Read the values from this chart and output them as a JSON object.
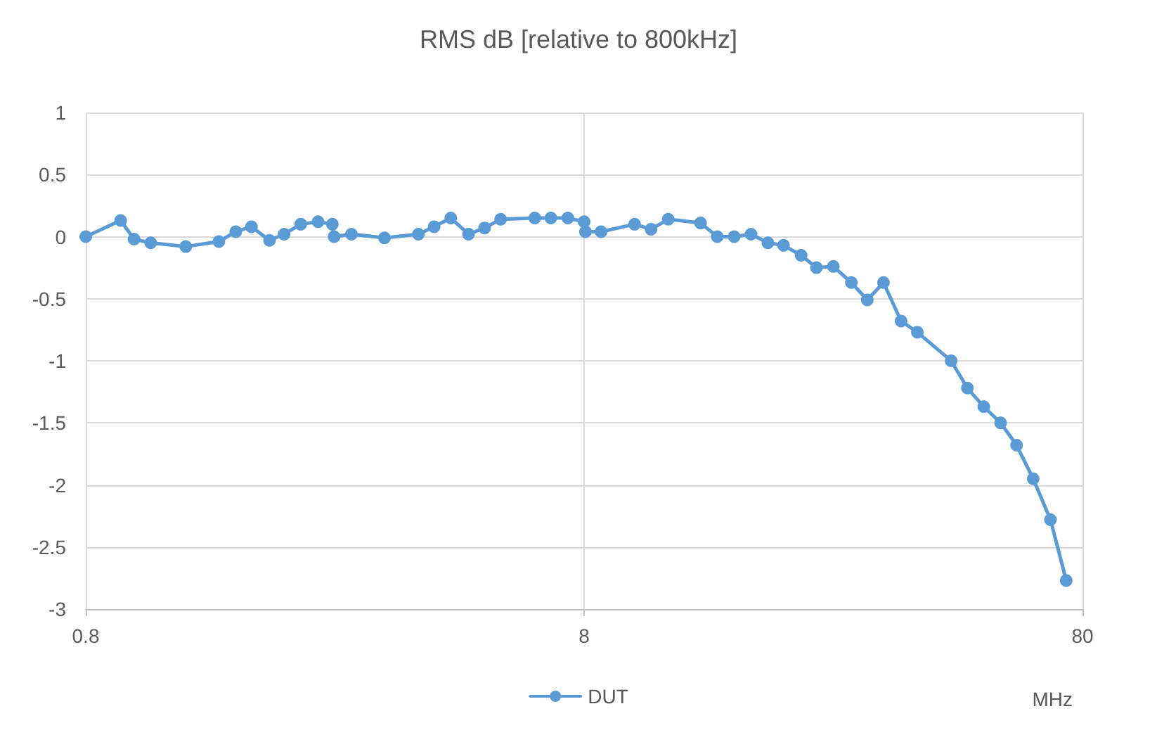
{
  "chart_data": {
    "type": "line",
    "title": "RMS dB [relative to 800kHz]",
    "xlabel": "MHz",
    "log": "x",
    "xlim": [
      0.8,
      80
    ],
    "xticks": [
      0.8,
      8,
      80
    ],
    "ylim": [
      -3,
      1
    ],
    "yticks": [
      -3,
      -2.5,
      -2,
      -1.5,
      -1,
      -0.5,
      0,
      0.5,
      1
    ],
    "grid": true,
    "legend": "bottom",
    "marker": "circle",
    "line_style": "solid",
    "series": [
      {
        "name": "DUT",
        "color": "#5b9bd5",
        "x": [
          0.8,
          0.94,
          1.0,
          1.08,
          1.27,
          1.48,
          1.6,
          1.72,
          1.87,
          2.0,
          2.16,
          2.34,
          2.5,
          2.52,
          2.73,
          3.18,
          3.72,
          4.0,
          4.32,
          4.69,
          5.05,
          5.44,
          6.37,
          6.86,
          7.42,
          8.0,
          8.05,
          8.65,
          10.1,
          10.9,
          11.8,
          13.7,
          14.8,
          16.0,
          17.3,
          18.7,
          20.1,
          21.8,
          23.4,
          25.3,
          27.5,
          29.6,
          31.9,
          34.6,
          37.3,
          43.6,
          47.0,
          50.7,
          54.8,
          59.0,
          63.7,
          69.0,
          74.2
        ],
        "values": [
          0,
          0.13,
          -0.02,
          -0.05,
          -0.08,
          -0.04,
          0.04,
          0.08,
          -0.03,
          0.02,
          0.1,
          0.12,
          0.1,
          0,
          0.02,
          -0.01,
          0.02,
          0.08,
          0.15,
          0.02,
          0.07,
          0.14,
          0.15,
          0.15,
          0.15,
          0.12,
          0.04,
          0.04,
          0.1,
          0.06,
          0.14,
          0.11,
          0,
          0,
          0.02,
          -0.05,
          -0.07,
          -0.15,
          -0.25,
          -0.24,
          -0.37,
          -0.51,
          -0.37,
          -0.68,
          -0.77,
          -1.0,
          -1.22,
          -1.37,
          -1.5,
          -1.68,
          -1.95,
          -2.28,
          -2.77
        ]
      }
    ]
  }
}
